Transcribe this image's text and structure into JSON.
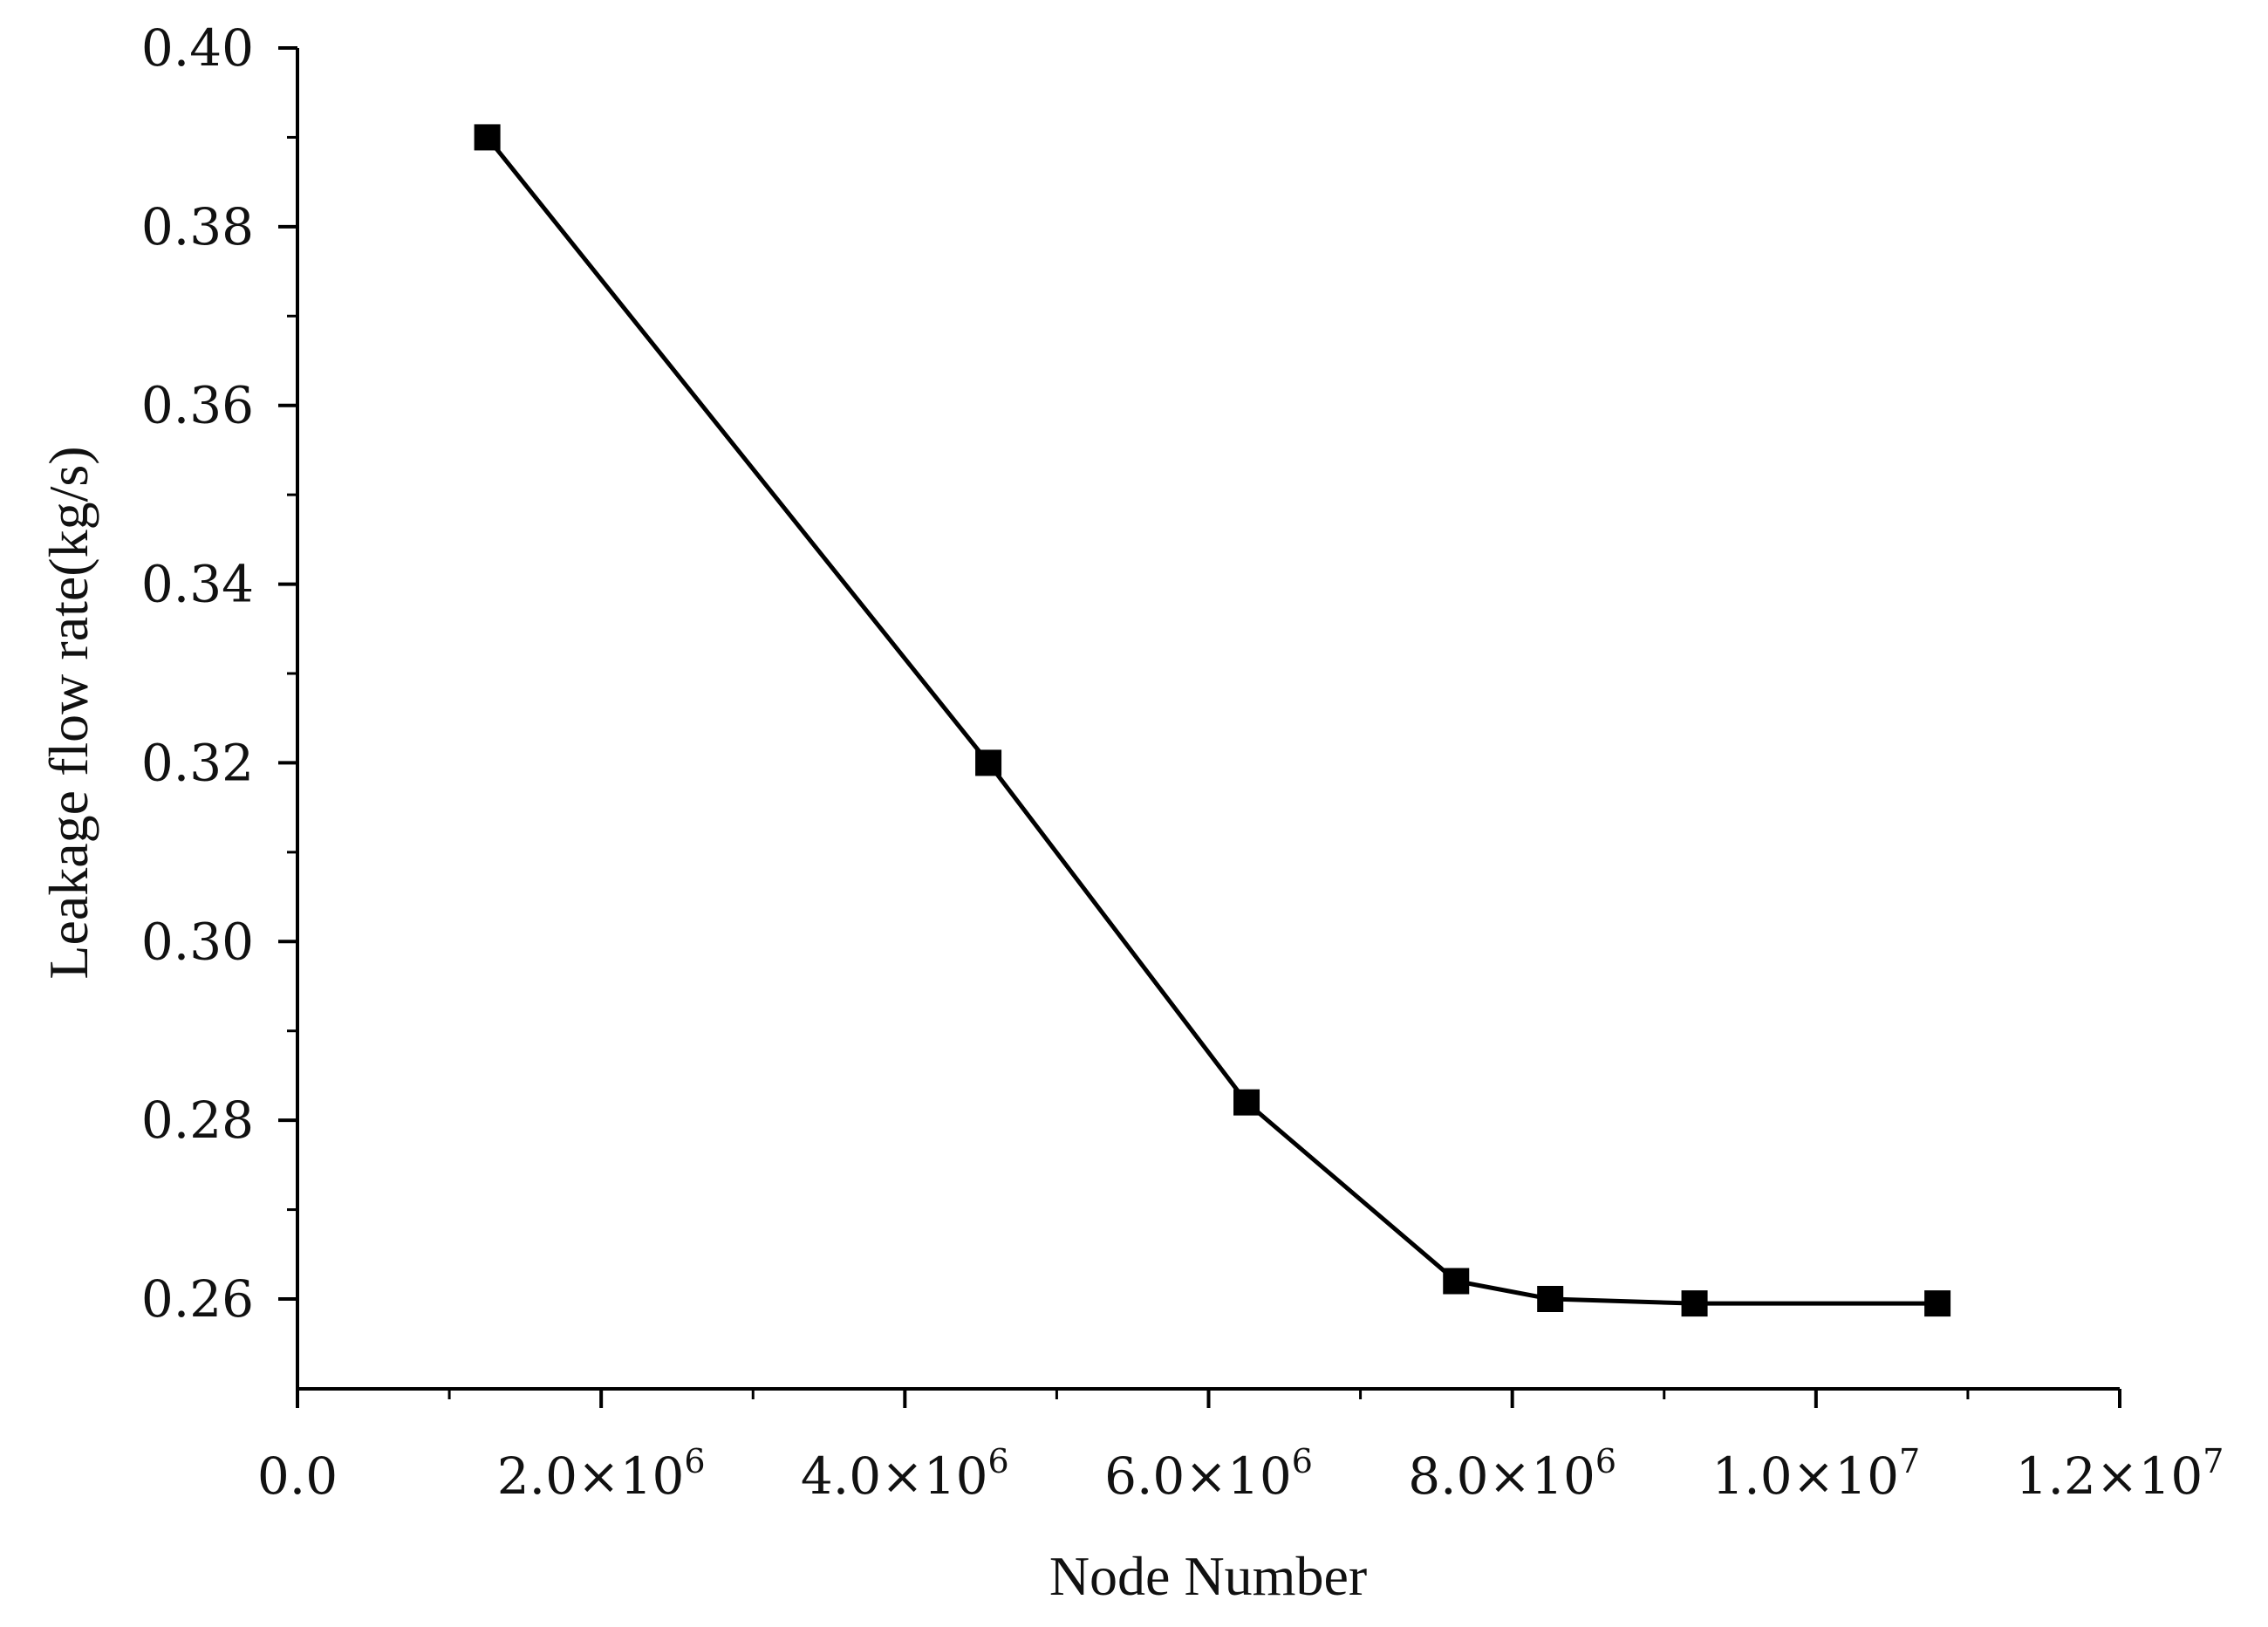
{
  "chart_data": {
    "type": "line",
    "title": "",
    "xlabel": "Node Number",
    "ylabel": "Leakage flow rate(kg/s)",
    "xlim": [
      0,
      12000000
    ],
    "ylim": [
      0.25,
      0.4
    ],
    "x_ticks": [
      {
        "value": 0,
        "label": "0.0"
      },
      {
        "value": 2000000,
        "label": "2.0×10",
        "exp": "6"
      },
      {
        "value": 4000000,
        "label": "4.0×10",
        "exp": "6"
      },
      {
        "value": 6000000,
        "label": "6.0×10",
        "exp": "6"
      },
      {
        "value": 8000000,
        "label": "8.0×10",
        "exp": "6"
      },
      {
        "value": 10000000,
        "label": "1.0×10",
        "exp": "7"
      },
      {
        "value": 12000000,
        "label": "1.2×10",
        "exp": "7"
      }
    ],
    "y_ticks": [
      {
        "value": 0.26,
        "label": "0.26"
      },
      {
        "value": 0.28,
        "label": "0.28"
      },
      {
        "value": 0.3,
        "label": "0.30"
      },
      {
        "value": 0.32,
        "label": "0.32"
      },
      {
        "value": 0.34,
        "label": "0.34"
      },
      {
        "value": 0.36,
        "label": "0.36"
      },
      {
        "value": 0.38,
        "label": "0.38"
      },
      {
        "value": 0.4,
        "label": "0.40"
      }
    ],
    "grid": false,
    "series": [
      {
        "marker": "square",
        "color": "#000000",
        "points": [
          {
            "x": 1250000,
            "y": 0.39
          },
          {
            "x": 4550000,
            "y": 0.32
          },
          {
            "x": 6250000,
            "y": 0.282
          },
          {
            "x": 7630000,
            "y": 0.262
          },
          {
            "x": 8250000,
            "y": 0.26
          },
          {
            "x": 9200000,
            "y": 0.2595
          },
          {
            "x": 10800000,
            "y": 0.2595
          }
        ]
      }
    ]
  }
}
